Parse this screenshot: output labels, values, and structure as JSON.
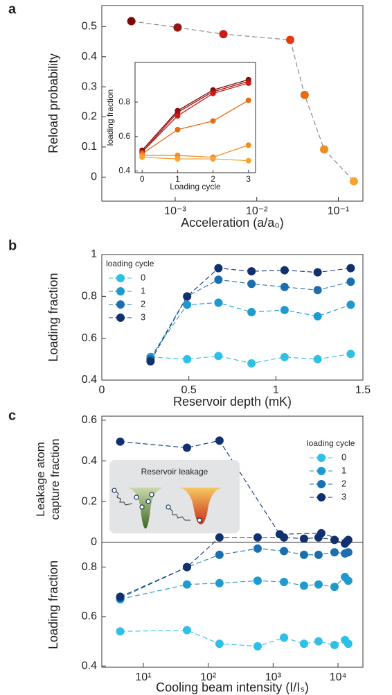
{
  "chart_data": [
    {
      "type": "line",
      "panel_label": "a",
      "ylabel": "Reload probability",
      "xlabel": "Acceleration (a/a₀)",
      "xlog": true,
      "line_style": "dashed",
      "xlim": [
        0.000126,
        0.2
      ],
      "ylim": [
        -0.08,
        0.57
      ],
      "xticks": [
        {
          "value": 0.001,
          "label": "10⁻³"
        },
        {
          "value": 0.01,
          "label": "10⁻²"
        },
        {
          "value": 0.1,
          "label": "10⁻¹"
        }
      ],
      "yticks": [
        0,
        0.1,
        0.2,
        0.3,
        0.4,
        0.5
      ],
      "x": [
        0.00029,
        0.00107,
        0.0039,
        0.0257,
        0.0386,
        0.067,
        0.155
      ],
      "series": [
        {
          "color": "#808080",
          "point_colors": [
            "#7a0a0a",
            "#9a1212",
            "#d01818",
            "#e23c10",
            "#e86a12",
            "#f08c20",
            "#f5a331"
          ],
          "values": [
            0.518,
            0.497,
            0.475,
            0.456,
            0.273,
            0.092,
            -0.014
          ]
        }
      ]
    },
    {
      "type": "line",
      "ylabel": "loading fraction",
      "xlabel": "Loading cycle",
      "line_style": "solid",
      "xlim": [
        -0.2,
        3.2
      ],
      "ylim": [
        0.39,
        1.03
      ],
      "xticks": [
        0,
        1,
        2,
        3
      ],
      "yticks": [
        0.4,
        0.6,
        0.8
      ],
      "x": [
        0,
        1,
        2,
        3
      ],
      "series": [
        {
          "color": "#7a0a0a",
          "values": [
            0.52,
            0.75,
            0.87,
            0.93
          ]
        },
        {
          "color": "#9a1212",
          "values": [
            0.51,
            0.74,
            0.86,
            0.92
          ]
        },
        {
          "color": "#d01818",
          "values": [
            0.51,
            0.72,
            0.85,
            0.91
          ]
        },
        {
          "color": "#e86a12",
          "values": [
            0.5,
            0.64,
            0.69,
            0.81
          ]
        },
        {
          "color": "#f08c20",
          "values": [
            0.49,
            0.49,
            0.48,
            0.55
          ]
        },
        {
          "color": "#f5a331",
          "values": [
            0.48,
            0.47,
            0.47,
            0.46
          ]
        }
      ]
    },
    {
      "type": "line",
      "panel_label": "b",
      "ylabel": "Loading fraction",
      "xlabel": "Reservoir depth (mK)",
      "line_style": "dashed",
      "xlim": [
        0,
        1.5
      ],
      "ylim": [
        0.4,
        1.0
      ],
      "xticks": [
        0,
        0.5,
        1,
        1.5
      ],
      "yticks": [
        0.4,
        0.6,
        0.8,
        1
      ],
      "legend": "upper left",
      "legend_title": "loading cycle",
      "x": [
        0.28,
        0.49,
        0.67,
        0.86,
        1.05,
        1.24,
        1.43
      ],
      "series": [
        {
          "name": "0",
          "color": "#2fc0e6",
          "values": [
            0.51,
            0.5,
            0.515,
            0.48,
            0.51,
            0.5,
            0.525
          ]
        },
        {
          "name": "1",
          "color": "#1e9ad0",
          "values": [
            0.51,
            0.76,
            0.77,
            0.725,
            0.735,
            0.705,
            0.76
          ]
        },
        {
          "name": "2",
          "color": "#1a6fb0",
          "values": [
            0.5,
            0.8,
            0.88,
            0.86,
            0.845,
            0.83,
            0.87
          ]
        },
        {
          "name": "3",
          "color": "#10306e",
          "values": [
            0.49,
            0.8,
            0.935,
            0.92,
            0.925,
            0.915,
            0.935
          ]
        }
      ]
    },
    {
      "type": "line",
      "panel_label": "c",
      "ylabel": [
        "Leakage atom",
        "capture fraction"
      ],
      "annotation": "Reservoir leakage",
      "xlog": true,
      "line_style": "dashed",
      "xlim": [
        2.29,
        24200
      ],
      "ylim": [
        0,
        0.62
      ],
      "yticks": [
        0,
        0.2,
        0.4,
        0.6
      ],
      "legend": "upper right",
      "legend_title": "loading cycle",
      "legend_names": [
        "0",
        "1",
        "2",
        "3"
      ],
      "x": [
        4.4,
        47,
        149,
        1265,
        5530,
        13700
      ],
      "series": [
        {
          "color": "#10306e",
          "values": [
            0.495,
            0.465,
            0.5,
            0.04,
            0.045,
            0.005
          ]
        }
      ]
    },
    {
      "type": "line",
      "ylabel": "Loading fraction",
      "xlabel": "Cooling beam intensity (I/Iₛ)",
      "xlog": true,
      "line_style": "dashed",
      "xlim": [
        2.29,
        24200
      ],
      "ylim": [
        0.395,
        0.9
      ],
      "xticks": [
        {
          "value": 10,
          "label": "10¹"
        },
        {
          "value": 100,
          "label": "10²"
        },
        {
          "value": 1000,
          "label": "10³"
        },
        {
          "value": 10000,
          "label": "10⁴"
        }
      ],
      "yticks": [
        0.4,
        0.6,
        0.8
      ],
      "x": [
        4.4,
        47,
        149,
        577,
        1470,
        2990,
        5010,
        8830,
        12800,
        14400
      ],
      "series": [
        {
          "color": "#2fc0e6",
          "values": [
            0.54,
            0.545,
            0.49,
            0.48,
            0.515,
            0.49,
            0.5,
            0.485,
            0.505,
            0.49
          ]
        },
        {
          "color": "#1e9ad0",
          "values": [
            0.67,
            0.73,
            0.735,
            0.745,
            0.74,
            0.725,
            0.73,
            0.72,
            0.76,
            0.745
          ]
        },
        {
          "color": "#1a6fb0",
          "values": [
            0.675,
            0.8,
            0.85,
            0.875,
            0.865,
            0.85,
            0.85,
            0.86,
            0.855,
            0.86
          ]
        },
        {
          "color": "#10306e",
          "values": [
            0.68,
            0.8,
            0.92,
            0.92,
            0.92,
            0.915,
            0.92,
            0.91,
            0.895,
            0.91
          ]
        }
      ]
    }
  ]
}
